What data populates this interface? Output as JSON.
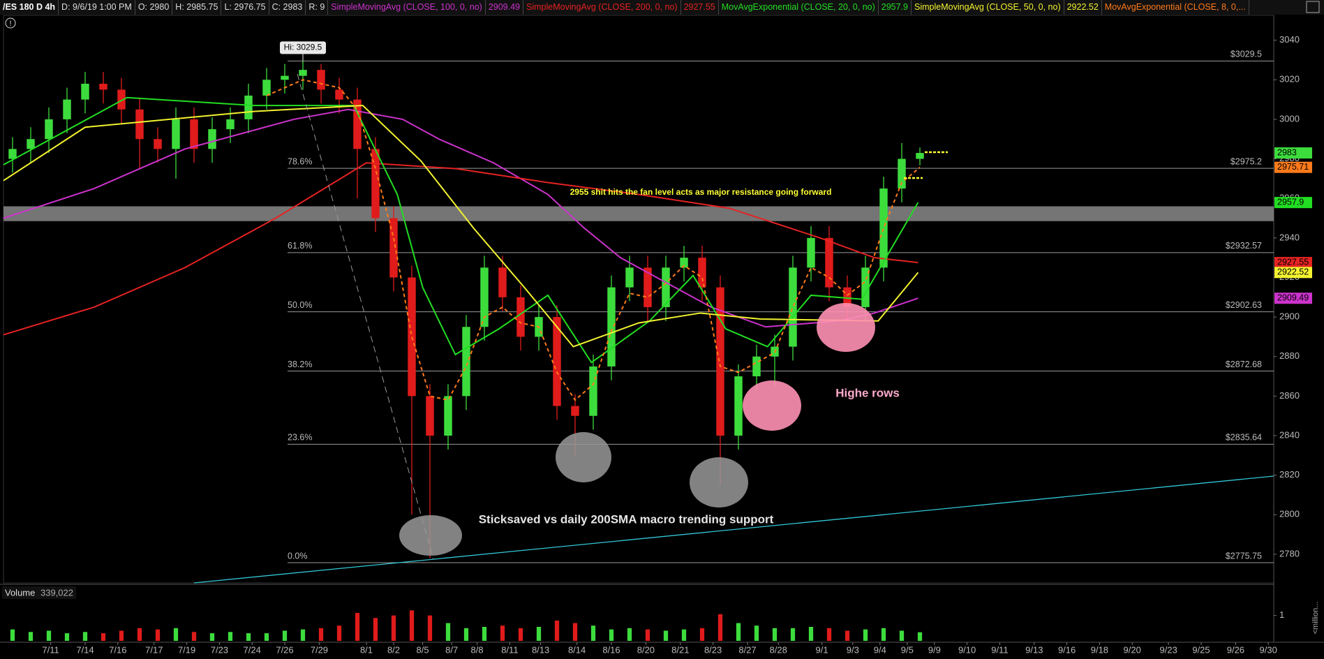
{
  "chart_data": {
    "type": "candlestick",
    "header": {
      "symbol": "/ES 180 D 4h",
      "fields": [
        "D: 9/6/19 1:00 PM",
        "O: 2980",
        "H: 2985.75",
        "L: 2976.75",
        "C: 2983",
        "R: 9"
      ]
    },
    "candles": {
      "open": [
        2980,
        2985,
        2990,
        3000,
        3010,
        3018,
        3015,
        3005,
        2990,
        2985,
        3000,
        2985,
        2995,
        3000,
        3012,
        3020,
        3022,
        3025,
        3015,
        3010,
        2985,
        2950,
        2920,
        2860,
        2840,
        2860,
        2895,
        2925,
        2910,
        2890,
        2900,
        2855,
        2850,
        2875,
        2915,
        2925,
        2905,
        2925,
        2930,
        2915,
        2840,
        2870,
        2880,
        2885,
        2925,
        2940,
        2915,
        2905,
        2925,
        2965,
        2980
      ],
      "high": [
        2991,
        2996,
        3006,
        3016,
        3024,
        3024,
        3021,
        3011,
        2996,
        3006,
        3006,
        3001,
        3006,
        3018,
        3026,
        3028,
        3029.5,
        3028,
        3021,
        3016,
        2991,
        2956,
        2926,
        2866,
        2866,
        2901,
        2931,
        2931,
        2916,
        2906,
        2906,
        2861,
        2881,
        2921,
        2931,
        2931,
        2931,
        2936,
        2936,
        2921,
        2876,
        2886,
        2891,
        2931,
        2946,
        2946,
        2921,
        2931,
        2971,
        2988,
        2985.75
      ],
      "low": [
        2973,
        2978,
        2983,
        2993,
        3003,
        3008,
        2998,
        2975,
        2978,
        2970,
        2978,
        2978,
        2988,
        2993,
        3005,
        3013,
        3015,
        3008,
        3003,
        2960,
        2943,
        2913,
        2800,
        2778,
        2833,
        2853,
        2888,
        2903,
        2883,
        2883,
        2848,
        2830,
        2843,
        2868,
        2908,
        2898,
        2898,
        2918,
        2908,
        2815,
        2833,
        2863,
        2865,
        2878,
        2918,
        2908,
        2898,
        2898,
        2918,
        2958,
        2976.75
      ],
      "close": [
        2985,
        2990,
        3000,
        3010,
        3018,
        3015,
        3005,
        2990,
        2985,
        3000,
        2985,
        2995,
        3000,
        3012,
        3020,
        3022,
        3025,
        3015,
        3010,
        2985,
        2950,
        2920,
        2860,
        2840,
        2860,
        2895,
        2925,
        2910,
        2890,
        2900,
        2855,
        2850,
        2875,
        2915,
        2925,
        2905,
        2925,
        2930,
        2915,
        2840,
        2870,
        2880,
        2885,
        2925,
        2940,
        2915,
        2905,
        2925,
        2965,
        2980,
        2983
      ],
      "up_color": "#3ddc3d",
      "down_color": "#e01b1b"
    },
    "series": [
      {
        "name": "SimpleMovingAvg (CLOSE, 100, 0, no)",
        "color": "#cc33cc",
        "x": [
          0,
          5,
          10,
          16,
          19,
          22,
          24,
          27,
          30,
          32,
          34,
          36,
          39,
          42,
          46,
          48,
          50.4
        ],
        "values": [
          2950,
          2965,
          2985,
          3000,
          3005,
          3000,
          2990,
          2978,
          2962,
          2945,
          2930,
          2920,
          2905,
          2895,
          2898,
          2902,
          2909.49
        ]
      },
      {
        "name": "SimpleMovingAvg (CLOSE, 200, 0, no)",
        "color": "#e52222",
        "x": [
          0,
          5,
          10,
          15,
          20,
          25,
          30,
          35,
          40,
          45,
          48,
          50.4
        ],
        "values": [
          2891,
          2905,
          2925,
          2950,
          2978,
          2975,
          2968,
          2962,
          2955,
          2940,
          2930,
          2927.55
        ]
      },
      {
        "name": "MovAvgExponential (CLOSE, 20, 0, no)",
        "color": "#22dd22",
        "x": [
          0,
          6.8,
          13.8,
          19.3,
          21.7,
          23.1,
          24.9,
          27.3,
          30,
          32.4,
          35.6,
          38,
          39.8,
          42.1,
          44.5,
          47.3,
          50.4
        ],
        "values": [
          2977,
          3011,
          3007,
          3007,
          2962,
          2915,
          2881,
          2894,
          2911,
          2877,
          2898,
          2921,
          2894,
          2885,
          2911,
          2909,
          2957.9
        ]
      },
      {
        "name": "SimpleMovingAvg (CLOSE, 50, 0, no)",
        "color": "#f2f230",
        "x": [
          0,
          4.5,
          13.8,
          19.8,
          23,
          25.9,
          28.7,
          31.4,
          35,
          38.4,
          41.7,
          48.2,
          50.4
        ],
        "values": [
          2969,
          2996,
          3004,
          3007,
          2979,
          2945,
          2915,
          2885,
          2897,
          2902,
          2899,
          2898,
          2922.52
        ]
      },
      {
        "name": "MovAvgExponential (CLOSE, 8, 0,...",
        "color": "#ff7a1a",
        "dashed": true,
        "show_value": false,
        "x": [
          14.5,
          16.5,
          18.5,
          19.5,
          20.5,
          21.5,
          22.5,
          23.5,
          24.5,
          25.5,
          26.5,
          27.5,
          28.5,
          29.5,
          30.5,
          31.5,
          32.5,
          33.5,
          34.5,
          35.5,
          36.5,
          37.5,
          38.5,
          39.5,
          40.5,
          41.5,
          42.5,
          43.5,
          44.5,
          45.5,
          46.5,
          47.5,
          48.5,
          49.5,
          50.5
        ],
        "values": [
          3012,
          3020,
          3016,
          3005,
          2975,
          2940,
          2890,
          2860,
          2858,
          2875,
          2900,
          2905,
          2897,
          2895,
          2872,
          2858,
          2866,
          2893,
          2912,
          2910,
          2917,
          2926,
          2920,
          2875,
          2872,
          2877,
          2882,
          2905,
          2925,
          2920,
          2911,
          2918,
          2945,
          2968,
          2975.71
        ]
      }
    ],
    "ylim": [
      2765.5,
      3054
    ],
    "yticks": [
      2780,
      2800,
      2820,
      2840,
      2860,
      2880,
      2900,
      2920,
      2940,
      2960,
      2980,
      3000,
      3020,
      3040
    ],
    "xlim": [
      0,
      70
    ],
    "xticks": [
      {
        "value": 2.6,
        "label": "7/11"
      },
      {
        "value": 4.5,
        "label": "7/14"
      },
      {
        "value": 6.3,
        "label": "7/16"
      },
      {
        "value": 8.3,
        "label": "7/17"
      },
      {
        "value": 10.1,
        "label": "7/19"
      },
      {
        "value": 11.9,
        "label": "7/23"
      },
      {
        "value": 13.7,
        "label": "7/24"
      },
      {
        "value": 15.5,
        "label": "7/26"
      },
      {
        "value": 17.4,
        "label": "7/29"
      },
      {
        "value": 20,
        "label": "8/1"
      },
      {
        "value": 21.5,
        "label": "8/2"
      },
      {
        "value": 23.1,
        "label": "8/5"
      },
      {
        "value": 24.7,
        "label": "8/7"
      },
      {
        "value": 26.1,
        "label": "8/8"
      },
      {
        "value": 27.9,
        "label": "8/11"
      },
      {
        "value": 29.6,
        "label": "8/13"
      },
      {
        "value": 31.6,
        "label": "8/14"
      },
      {
        "value": 33.5,
        "label": "8/16"
      },
      {
        "value": 35.4,
        "label": "8/20"
      },
      {
        "value": 37.3,
        "label": "8/21"
      },
      {
        "value": 39.1,
        "label": "8/23"
      },
      {
        "value": 41,
        "label": "8/27"
      },
      {
        "value": 42.7,
        "label": "8/28"
      },
      {
        "value": 45.1,
        "label": "9/1"
      },
      {
        "value": 46.8,
        "label": "9/3"
      },
      {
        "value": 48.3,
        "label": "9/4"
      },
      {
        "value": 49.8,
        "label": "9/5"
      },
      {
        "value": 51.3,
        "label": "9/9"
      },
      {
        "value": 53.1,
        "label": "9/10"
      },
      {
        "value": 54.9,
        "label": "9/11"
      },
      {
        "value": 56.8,
        "label": "9/13"
      },
      {
        "value": 58.6,
        "label": "9/16"
      },
      {
        "value": 60.4,
        "label": "9/18"
      },
      {
        "value": 62.2,
        "label": "9/20"
      },
      {
        "value": 64.2,
        "label": "9/23"
      },
      {
        "value": 66,
        "label": "9/25"
      },
      {
        "value": 67.9,
        "label": "9/26"
      },
      {
        "value": 69.7,
        "label": "9/30"
      }
    ],
    "fib_levels": [
      {
        "value": 3029.5,
        "label": "$3029.5"
      },
      {
        "pct": "78.6%",
        "value": 2975.2,
        "label": "$2975.2"
      },
      {
        "pct": "61.8%",
        "value": 2932.57,
        "label": "$2932.57"
      },
      {
        "pct": "50.0%",
        "value": 2902.63,
        "label": "$2902.63"
      },
      {
        "pct": "38.2%",
        "value": 2872.68,
        "label": "$2872.68"
      },
      {
        "pct": "23.6%",
        "value": 2835.64,
        "label": "$2835.64"
      },
      {
        "pct": "0.0%",
        "value": 2775.75,
        "label": "$2775.75"
      }
    ],
    "zone": [
      2948.5,
      2956
    ],
    "hi": {
      "value": 3029.5,
      "label": "Hi: 3029.5"
    },
    "annotations": [
      "2955 shit hits the fan level acts as  major resistance going forward",
      "Highe rows",
      "Sticksaved vs daily 200SMA macro trending support"
    ],
    "volume": {
      "label": "Volume",
      "last_label": "339,022",
      "ylim": [
        0,
        2.2
      ],
      "yticks": [
        1
      ],
      "unit_label": "<million...",
      "values": [
        0.45,
        0.35,
        0.4,
        0.3,
        0.35,
        0.3,
        0.4,
        0.5,
        0.45,
        0.5,
        0.35,
        0.3,
        0.35,
        0.3,
        0.3,
        0.4,
        0.45,
        0.5,
        0.6,
        1.1,
        0.9,
        1.0,
        1.2,
        1.0,
        0.7,
        0.5,
        0.55,
        0.6,
        0.5,
        0.55,
        0.8,
        0.7,
        0.6,
        0.45,
        0.5,
        0.45,
        0.4,
        0.45,
        0.5,
        1.05,
        0.7,
        0.6,
        0.5,
        0.5,
        0.55,
        0.5,
        0.4,
        0.45,
        0.5,
        0.4,
        0.339022
      ]
    }
  }
}
